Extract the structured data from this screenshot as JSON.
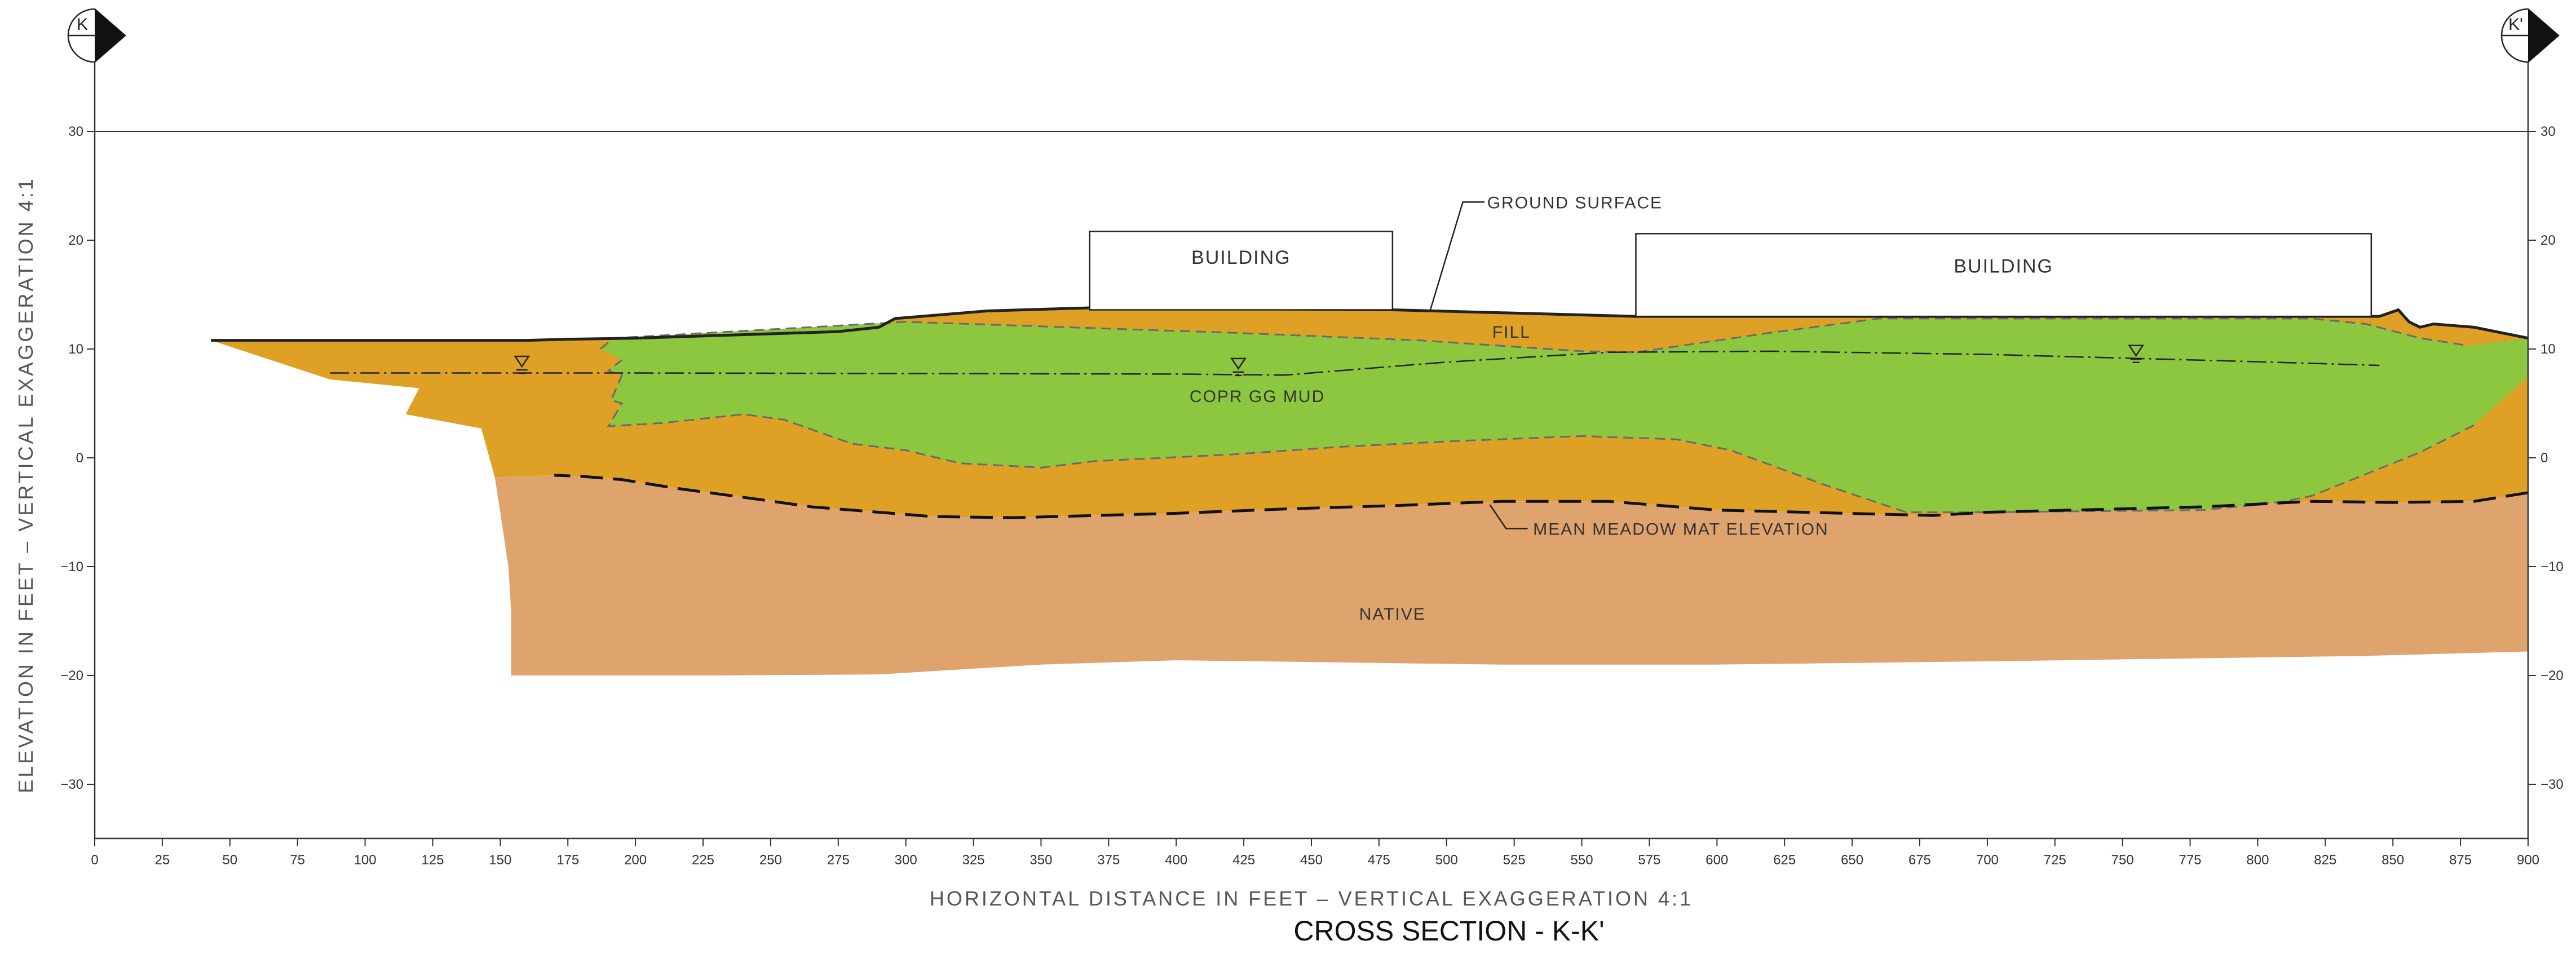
{
  "title": "CROSS SECTION - K-K'",
  "section_markers": {
    "left": "K",
    "right": "K'"
  },
  "axes": {
    "x_label": "HORIZONTAL DISTANCE IN FEET – VERTICAL EXAGGERATION 4:1",
    "y_label": "ELEVATION IN FEET – VERTICAL EXAGGERATION 4:1",
    "x_range": [
      0,
      900
    ],
    "y_range": [
      -35,
      45
    ],
    "x_ticks": [
      0,
      25,
      50,
      75,
      100,
      125,
      150,
      175,
      200,
      225,
      250,
      275,
      300,
      325,
      350,
      375,
      400,
      425,
      450,
      475,
      500,
      525,
      550,
      575,
      600,
      625,
      650,
      675,
      700,
      725,
      750,
      775,
      800,
      825,
      850,
      875,
      900
    ],
    "y_ticks": [
      30,
      20,
      10,
      0,
      -10,
      -20,
      -30
    ],
    "y_tick_labels": [
      "30",
      "20",
      "10",
      "0",
      "−10",
      "−20",
      "−30"
    ]
  },
  "labels": {
    "building_1": "BUILDING",
    "building_2": "BUILDING",
    "ground_surface": "GROUND SURFACE",
    "fill": "FILL",
    "mud": "COPR GG MUD",
    "meadow_mat": "MEAN MEADOW MAT ELEVATION",
    "native": "NATIVE"
  },
  "colors": {
    "fill_unit": "#DFA125",
    "mud_unit": "#8DC63F",
    "native_unit": "#DFA36E",
    "line": "#222222",
    "dashed_contact": "#6b6b6b"
  },
  "geometry": {
    "ground_surface": [
      [
        43,
        10.8
      ],
      [
        160,
        10.8
      ],
      [
        175,
        10.9
      ],
      [
        200,
        11.0
      ],
      [
        275,
        11.6
      ],
      [
        290,
        12.0
      ],
      [
        296,
        12.8
      ],
      [
        330,
        13.5
      ],
      [
        370,
        13.8
      ],
      [
        480,
        13.6
      ],
      [
        570,
        13.0
      ],
      [
        845,
        13.0
      ],
      [
        852,
        13.6
      ],
      [
        856,
        12.5
      ],
      [
        860,
        12.0
      ],
      [
        865,
        12.3
      ],
      [
        880,
        12.0
      ],
      [
        900,
        11.0
      ]
    ],
    "fill_bottom": [
      [
        900,
        -3.2
      ],
      [
        880,
        -4.0
      ],
      [
        850,
        -4.1
      ],
      [
        820,
        -4.0
      ],
      [
        780,
        -4.5
      ],
      [
        700,
        -5.0
      ],
      [
        680,
        -5.3
      ],
      [
        600,
        -4.8
      ],
      [
        560,
        -4.0
      ],
      [
        520,
        -4.0
      ],
      [
        480,
        -4.4
      ],
      [
        440,
        -4.7
      ],
      [
        400,
        -5.1
      ],
      [
        340,
        -5.5
      ],
      [
        310,
        -5.4
      ],
      [
        290,
        -5.0
      ],
      [
        265,
        -4.5
      ],
      [
        245,
        -3.8
      ],
      [
        215,
        -2.8
      ],
      [
        195,
        -2.0
      ],
      [
        180,
        -1.7
      ],
      [
        170,
        -1.6
      ],
      [
        148,
        -1.8
      ]
    ],
    "fill_west_edge": [
      [
        148,
        -1.8
      ],
      [
        143,
        2.7
      ],
      [
        115,
        4.0
      ],
      [
        120,
        6.4
      ],
      [
        87,
        7.2
      ],
      [
        43,
        10.8
      ]
    ],
    "mud_top": [
      [
        187,
        10.0
      ],
      [
        192,
        11.0
      ],
      [
        300,
        12.5
      ],
      [
        360,
        12.0
      ],
      [
        420,
        11.5
      ],
      [
        490,
        10.8
      ],
      [
        550,
        9.8
      ],
      [
        570,
        9.7
      ],
      [
        620,
        11.5
      ],
      [
        660,
        12.8
      ],
      [
        820,
        12.8
      ],
      [
        840,
        12.3
      ],
      [
        860,
        11.0
      ],
      [
        878,
        10.3
      ],
      [
        900,
        11.0
      ]
    ],
    "mud_bottom": [
      [
        900,
        7.5
      ],
      [
        880,
        3.0
      ],
      [
        860,
        0.5
      ],
      [
        845,
        -1.0
      ],
      [
        820,
        -3.5
      ],
      [
        810,
        -4.0
      ],
      [
        800,
        -4.3
      ],
      [
        780,
        -4.8
      ],
      [
        700,
        -5.0
      ],
      [
        670,
        -5.0
      ],
      [
        640,
        -2.5
      ],
      [
        605,
        0.7
      ],
      [
        585,
        1.7
      ],
      [
        550,
        2.0
      ],
      [
        500,
        1.5
      ],
      [
        460,
        1.0
      ],
      [
        420,
        0.3
      ],
      [
        370,
        -0.3
      ],
      [
        350,
        -0.9
      ],
      [
        320,
        -0.5
      ],
      [
        300,
        0.7
      ],
      [
        280,
        1.3
      ],
      [
        255,
        3.5
      ],
      [
        240,
        4.0
      ],
      [
        210,
        3.2
      ],
      [
        190,
        2.9
      ],
      [
        195,
        5.0
      ],
      [
        191,
        5.3
      ],
      [
        195,
        7.6
      ],
      [
        190,
        8.0
      ],
      [
        195,
        9.0
      ]
    ],
    "native_bottom": [
      [
        900,
        -17.8
      ],
      [
        840,
        -18.2
      ],
      [
        700,
        -18.7
      ],
      [
        600,
        -19.0
      ],
      [
        520,
        -19.0
      ],
      [
        460,
        -18.8
      ],
      [
        400,
        -18.6
      ],
      [
        350,
        -19.0
      ],
      [
        290,
        -19.9
      ],
      [
        230,
        -20.0
      ],
      [
        154,
        -20.0
      ],
      [
        154,
        -14.0
      ],
      [
        153,
        -10.0
      ],
      [
        150,
        -5.0
      ],
      [
        148,
        -1.8
      ]
    ],
    "water_table": [
      [
        87,
        7.8
      ],
      [
        200,
        7.8
      ],
      [
        400,
        7.7
      ],
      [
        440,
        7.6
      ],
      [
        500,
        8.8
      ],
      [
        560,
        9.7
      ],
      [
        620,
        9.8
      ],
      [
        700,
        9.5
      ],
      [
        790,
        8.9
      ],
      [
        845,
        8.5
      ]
    ],
    "water_symbols": [
      [
        158,
        8.6
      ],
      [
        423,
        8.4
      ],
      [
        755,
        9.6
      ]
    ],
    "buildings": [
      [
        368,
        480,
        13.6,
        20.8
      ],
      [
        570,
        842,
        13.0,
        20.6
      ]
    ],
    "label_anchors": {
      "ground_surface": [
        515,
        23.5
      ],
      "fill": [
        524,
        11.6
      ],
      "mud": [
        430,
        5.7
      ],
      "meadow_mat": [
        532,
        -6.5
      ],
      "native": [
        480,
        -14.3
      ],
      "building_1": [
        424,
        18.4
      ],
      "building_2": [
        706,
        17.6
      ]
    },
    "leaders": {
      "ground_surface": [
        [
          514,
          23.5
        ],
        [
          506,
          23.5
        ],
        [
          494,
          13.6
        ]
      ],
      "meadow_mat": [
        [
          530,
          -6.5
        ],
        [
          522,
          -6.5
        ],
        [
          516,
          -4.3
        ]
      ]
    }
  }
}
